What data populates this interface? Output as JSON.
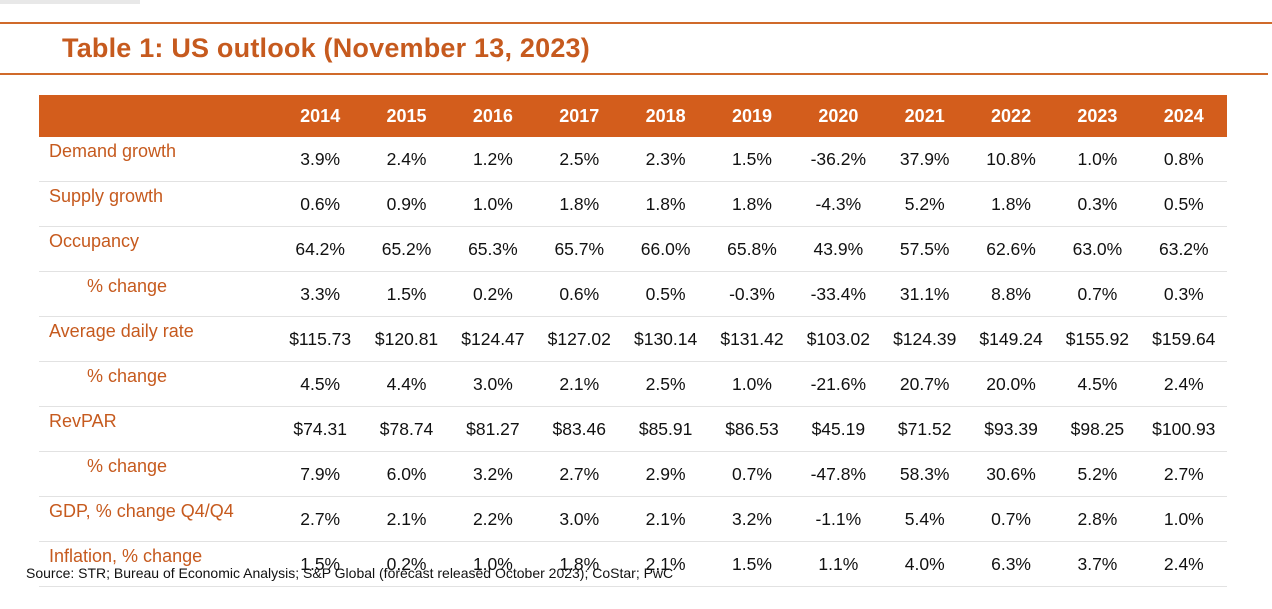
{
  "header": {
    "title": "Table 1: US outlook (November 13, 2023)"
  },
  "table": {
    "columns": [
      "2014",
      "2015",
      "2016",
      "2017",
      "2018",
      "2019",
      "2020",
      "2021",
      "2022",
      "2023",
      "2024"
    ],
    "rows": [
      {
        "label": "Demand growth",
        "indent": false,
        "values": [
          "3.9%",
          "2.4%",
          "1.2%",
          "2.5%",
          "2.3%",
          "1.5%",
          "-36.2%",
          "37.9%",
          "10.8%",
          "1.0%",
          "0.8%"
        ]
      },
      {
        "label": "Supply growth",
        "indent": false,
        "values": [
          "0.6%",
          "0.9%",
          "1.0%",
          "1.8%",
          "1.8%",
          "1.8%",
          "-4.3%",
          "5.2%",
          "1.8%",
          "0.3%",
          "0.5%"
        ]
      },
      {
        "label": "Occupancy",
        "indent": false,
        "values": [
          "64.2%",
          "65.2%",
          "65.3%",
          "65.7%",
          "66.0%",
          "65.8%",
          "43.9%",
          "57.5%",
          "62.6%",
          "63.0%",
          "63.2%"
        ]
      },
      {
        "label": "% change",
        "indent": true,
        "values": [
          "3.3%",
          "1.5%",
          "0.2%",
          "0.6%",
          "0.5%",
          "-0.3%",
          "-33.4%",
          "31.1%",
          "8.8%",
          "0.7%",
          "0.3%"
        ]
      },
      {
        "label": "Average daily rate",
        "indent": false,
        "values": [
          "$115.73",
          "$120.81",
          "$124.47",
          "$127.02",
          "$130.14",
          "$131.42",
          "$103.02",
          "$124.39",
          "$149.24",
          "$155.92",
          "$159.64"
        ]
      },
      {
        "label": "% change",
        "indent": true,
        "values": [
          "4.5%",
          "4.4%",
          "3.0%",
          "2.1%",
          "2.5%",
          "1.0%",
          "-21.6%",
          "20.7%",
          "20.0%",
          "4.5%",
          "2.4%"
        ]
      },
      {
        "label": "RevPAR",
        "indent": false,
        "values": [
          "$74.31",
          "$78.74",
          "$81.27",
          "$83.46",
          "$85.91",
          "$86.53",
          "$45.19",
          "$71.52",
          "$93.39",
          "$98.25",
          "$100.93"
        ]
      },
      {
        "label": "% change",
        "indent": true,
        "values": [
          "7.9%",
          "6.0%",
          "3.2%",
          "2.7%",
          "2.9%",
          "0.7%",
          "-47.8%",
          "58.3%",
          "30.6%",
          "5.2%",
          "2.7%"
        ]
      },
      {
        "label": "GDP, % change Q4/Q4",
        "indent": false,
        "values": [
          "2.7%",
          "2.1%",
          "2.2%",
          "3.0%",
          "2.1%",
          "3.2%",
          "-1.1%",
          "5.4%",
          "0.7%",
          "2.8%",
          "1.0%"
        ]
      },
      {
        "label": "Inflation, % change",
        "indent": false,
        "values": [
          "1.5%",
          "0.2%",
          "1.0%",
          "1.8%",
          "2.1%",
          "1.5%",
          "1.1%",
          "4.0%",
          "6.3%",
          "3.7%",
          "2.4%"
        ]
      }
    ]
  },
  "footer": {
    "source": "Source: STR; Bureau of Economic Analysis; S&P Global (forecast released October 2023); CoStar; PwC"
  },
  "colors": {
    "accent": "#d35d1c",
    "title": "#c65a1e",
    "label": "#c65a1e"
  }
}
